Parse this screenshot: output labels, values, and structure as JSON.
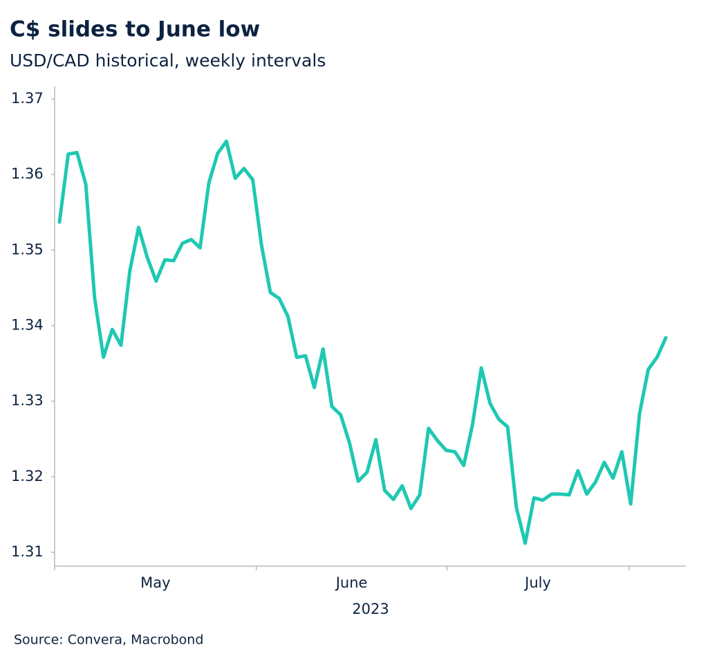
{
  "chart_data": {
    "type": "line",
    "title": "C$ slides to June low",
    "subtitle": "USD/CAD historical, weekly intervals",
    "source": "Source: Convera, Macrobond",
    "month_labels": [
      "May",
      "June",
      "July"
    ],
    "year_label": "2023",
    "color": "#1fc8b2",
    "values": [
      1.3537,
      1.3627,
      1.3629,
      1.3587,
      1.3437,
      1.3358,
      1.3395,
      1.3374,
      1.3472,
      1.353,
      1.349,
      1.3459,
      1.3487,
      1.3486,
      1.3509,
      1.3514,
      1.3503,
      1.3589,
      1.3628,
      1.3644,
      1.3595,
      1.3608,
      1.3593,
      1.3506,
      1.3444,
      1.3436,
      1.3412,
      1.3358,
      1.336,
      1.3318,
      1.3369,
      1.3293,
      1.3282,
      1.3245,
      1.3194,
      1.3206,
      1.3249,
      1.3182,
      1.317,
      1.3188,
      1.3158,
      1.3176,
      1.3264,
      1.3248,
      1.3235,
      1.3233,
      1.3215,
      1.3269,
      1.3344,
      1.3297,
      1.3276,
      1.3266,
      1.3159,
      1.3112,
      1.3172,
      1.3169,
      1.3177,
      1.3177,
      1.3176,
      1.3208,
      1.3177,
      1.3193,
      1.3219,
      1.3198,
      1.3233,
      1.3164,
      1.3283,
      1.3342,
      1.3358,
      1.3384
    ],
    "ylim": [
      1.31,
      1.37
    ],
    "yticks": [
      {
        "value": 1.31,
        "label": "1.31"
      },
      {
        "value": 1.32,
        "label": "1.32"
      },
      {
        "value": 1.33,
        "label": "1.33"
      },
      {
        "value": 1.34,
        "label": "1.34"
      },
      {
        "value": 1.35,
        "label": "1.35"
      },
      {
        "value": 1.36,
        "label": "1.36"
      },
      {
        "value": 1.37,
        "label": "1.37"
      }
    ],
    "grid": false
  }
}
